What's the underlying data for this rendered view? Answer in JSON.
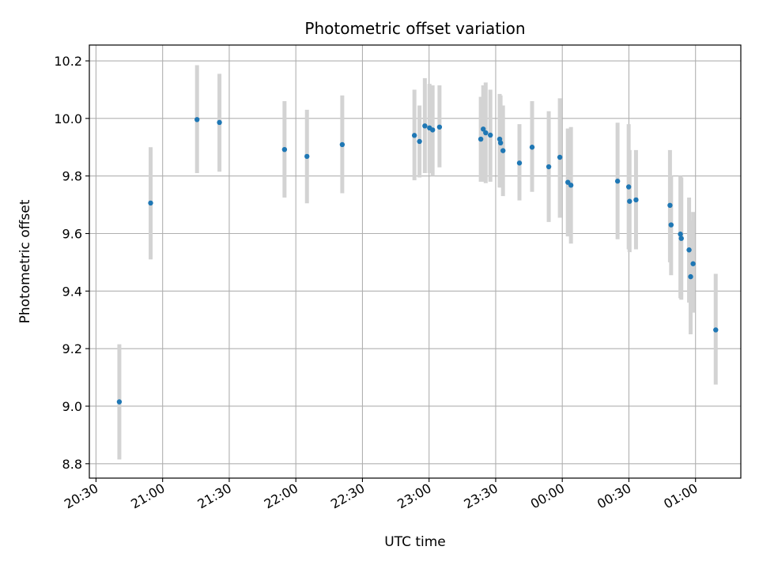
{
  "chart_data": {
    "type": "scatter",
    "title": "Photometric offset variation",
    "xlabel": "UTC time",
    "ylabel": "Photometric offset",
    "x_tick_labels": [
      "20:30",
      "21:00",
      "21:30",
      "22:00",
      "22:30",
      "23:00",
      "23:30",
      "00:00",
      "00:30",
      "01:00"
    ],
    "x_tick_minutes": [
      0,
      30,
      60,
      90,
      120,
      150,
      180,
      210,
      240,
      270
    ],
    "y_ticks": [
      8.8,
      9.0,
      9.2,
      9.4,
      9.6,
      9.8,
      10.0,
      10.2
    ],
    "y_tick_labels": [
      "8.8",
      "9.0",
      "9.2",
      "9.4",
      "9.6",
      "9.8",
      "10.0",
      "10.2"
    ],
    "xlim_minutes": [
      -3.0,
      290.4
    ],
    "ylim": [
      8.75,
      10.255
    ],
    "grid": true,
    "marker_color": "#1f77b4",
    "errorbar_color": "#d3d3d3",
    "points": [
      {
        "t": 10.5,
        "y": 9.015,
        "lo": 8.815,
        "hi": 9.215
      },
      {
        "t": 24.6,
        "y": 9.706,
        "lo": 9.51,
        "hi": 9.9
      },
      {
        "t": 45.5,
        "y": 9.996,
        "lo": 9.81,
        "hi": 10.185
      },
      {
        "t": 55.6,
        "y": 9.986,
        "lo": 9.815,
        "hi": 10.155
      },
      {
        "t": 84.9,
        "y": 9.892,
        "lo": 9.725,
        "hi": 10.06
      },
      {
        "t": 95.0,
        "y": 9.868,
        "lo": 9.705,
        "hi": 10.03
      },
      {
        "t": 110.9,
        "y": 9.909,
        "lo": 9.74,
        "hi": 10.08
      },
      {
        "t": 143.4,
        "y": 9.941,
        "lo": 9.785,
        "hi": 10.1
      },
      {
        "t": 145.7,
        "y": 9.92,
        "lo": 9.795,
        "hi": 10.045
      },
      {
        "t": 148.1,
        "y": 9.974,
        "lo": 9.81,
        "hi": 10.14
      },
      {
        "t": 150.2,
        "y": 9.967,
        "lo": 9.81,
        "hi": 10.12
      },
      {
        "t": 151.6,
        "y": 9.96,
        "lo": 9.8,
        "hi": 10.115
      },
      {
        "t": 154.7,
        "y": 9.97,
        "lo": 9.83,
        "hi": 10.115
      },
      {
        "t": 173.3,
        "y": 9.928,
        "lo": 9.78,
        "hi": 10.075
      },
      {
        "t": 174.4,
        "y": 9.963,
        "lo": 9.78,
        "hi": 10.115
      },
      {
        "t": 175.5,
        "y": 9.95,
        "lo": 9.775,
        "hi": 10.125
      },
      {
        "t": 177.6,
        "y": 9.942,
        "lo": 9.78,
        "hi": 10.1
      },
      {
        "t": 181.8,
        "y": 9.928,
        "lo": 9.76,
        "hi": 10.085
      },
      {
        "t": 182.2,
        "y": 9.915,
        "lo": 9.76,
        "hi": 10.08
      },
      {
        "t": 183.3,
        "y": 9.888,
        "lo": 9.73,
        "hi": 10.045
      },
      {
        "t": 190.7,
        "y": 9.845,
        "lo": 9.715,
        "hi": 9.98
      },
      {
        "t": 196.4,
        "y": 9.9,
        "lo": 9.745,
        "hi": 10.06
      },
      {
        "t": 203.9,
        "y": 9.832,
        "lo": 9.64,
        "hi": 10.025
      },
      {
        "t": 208.9,
        "y": 9.865,
        "lo": 9.655,
        "hi": 10.07
      },
      {
        "t": 212.5,
        "y": 9.778,
        "lo": 9.59,
        "hi": 9.965
      },
      {
        "t": 213.9,
        "y": 9.768,
        "lo": 9.565,
        "hi": 9.97
      },
      {
        "t": 234.9,
        "y": 9.782,
        "lo": 9.58,
        "hi": 9.985
      },
      {
        "t": 239.9,
        "y": 9.762,
        "lo": 9.545,
        "hi": 9.98
      },
      {
        "t": 240.3,
        "y": 9.712,
        "lo": 9.535,
        "hi": 9.89
      },
      {
        "t": 243.2,
        "y": 9.717,
        "lo": 9.545,
        "hi": 9.89
      },
      {
        "t": 258.5,
        "y": 9.698,
        "lo": 9.5,
        "hi": 9.89
      },
      {
        "t": 259.0,
        "y": 9.63,
        "lo": 9.455,
        "hi": 9.8
      },
      {
        "t": 263.2,
        "y": 9.598,
        "lo": 9.375,
        "hi": 9.8
      },
      {
        "t": 263.6,
        "y": 9.583,
        "lo": 9.37,
        "hi": 9.795
      },
      {
        "t": 267.1,
        "y": 9.543,
        "lo": 9.36,
        "hi": 9.725
      },
      {
        "t": 267.8,
        "y": 9.45,
        "lo": 9.25,
        "hi": 9.645
      },
      {
        "t": 268.9,
        "y": 9.495,
        "lo": 9.325,
        "hi": 9.675
      },
      {
        "t": 279.1,
        "y": 9.265,
        "lo": 9.075,
        "hi": 9.46
      }
    ]
  }
}
